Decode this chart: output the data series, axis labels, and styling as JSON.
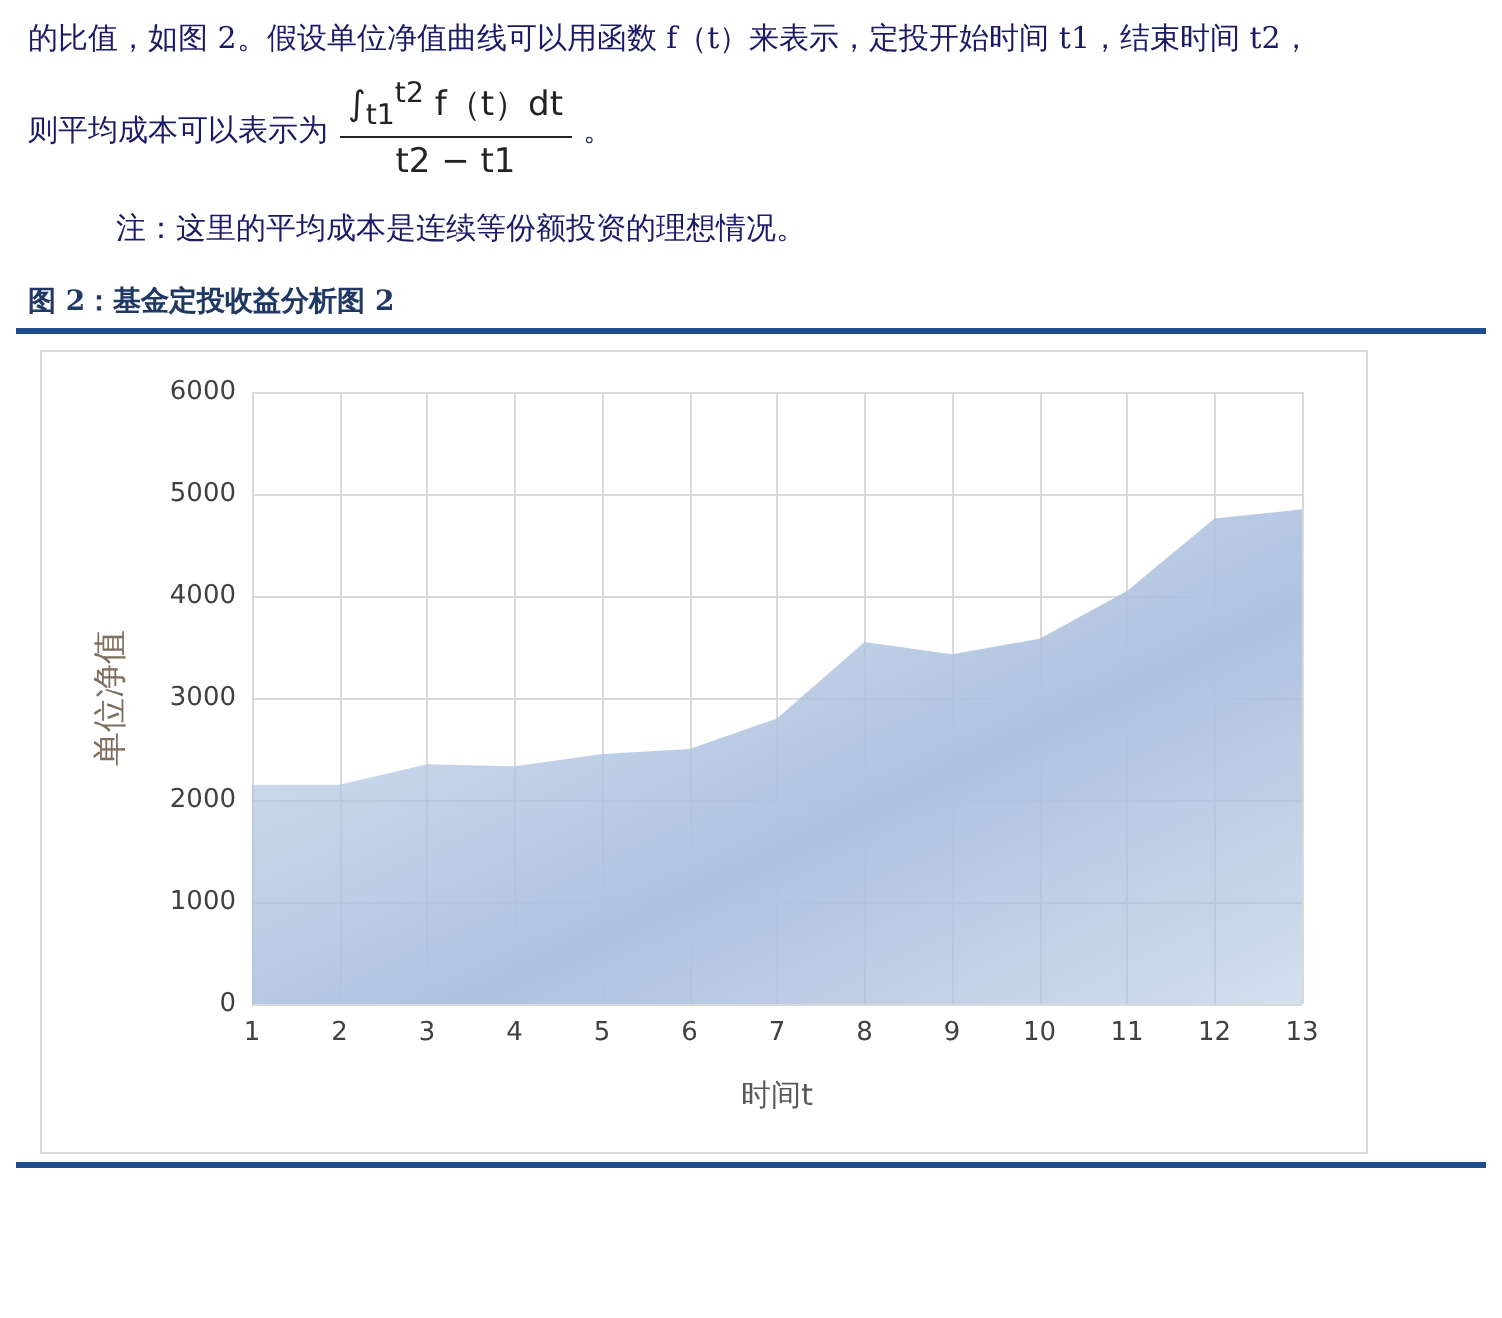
{
  "chart_data": {
    "type": "area",
    "title": "图 2：基金定投收益分析图 2",
    "annotations": [
      "的比值，如图 2。假设单位净值曲线可以用函数 f（t）来表示，定投开始时间 t1，结束时间 t2，",
      "则平均成本可以表示为",
      "∫$_{t1}$$^{t2}$ f（t）dt",
      "t2 − t1",
      "。",
      "注：这里的平均成本是连续等份额投资的理想情况。"
    ],
    "xlabel": "时间t",
    "ylabel": "单位净值",
    "x": [
      1,
      2,
      3,
      4,
      5,
      6,
      7,
      8,
      9,
      10,
      11,
      12,
      13
    ],
    "xlim": [
      1,
      13
    ],
    "xticks": [
      1,
      2,
      3,
      4,
      5,
      6,
      7,
      8,
      9,
      10,
      11,
      12,
      13
    ],
    "series": [
      {
        "color": "#aec2df",
        "values": [
          2150,
          2150,
          2350,
          2330,
          2450,
          2500,
          2800,
          3550,
          3430,
          3580,
          4050,
          4760,
          4850
        ]
      }
    ],
    "ylim": [
      0,
      6000
    ],
    "yticks": [
      0,
      1000,
      2000,
      3000,
      4000,
      5000,
      6000
    ],
    "grid": true
  }
}
